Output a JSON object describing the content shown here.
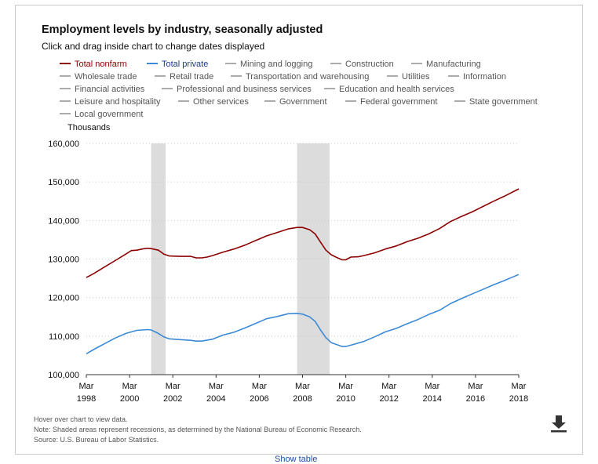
{
  "title": "Employment levels by industry, seasonally adjusted",
  "subtitle": "Click and drag inside chart to change dates displayed",
  "legend": [
    {
      "label": "Total nonfarm",
      "color": "#8b0000",
      "active": true
    },
    {
      "label": "Total private",
      "color": "#3c8ad6",
      "active": true
    },
    {
      "label": "Mining and logging",
      "color": "#aaaaaa",
      "active": false
    },
    {
      "label": "Construction",
      "color": "#aaaaaa",
      "active": false
    },
    {
      "label": "Manufacturing",
      "color": "#aaaaaa",
      "active": false
    },
    {
      "label": "Wholesale trade",
      "color": "#aaaaaa",
      "active": false
    },
    {
      "label": "Retail trade",
      "color": "#aaaaaa",
      "active": false
    },
    {
      "label": "Transportation and warehousing",
      "color": "#aaaaaa",
      "active": false
    },
    {
      "label": "Utilities",
      "color": "#aaaaaa",
      "active": false
    },
    {
      "label": "Information",
      "color": "#aaaaaa",
      "active": false
    },
    {
      "label": "Financial activities",
      "color": "#aaaaaa",
      "active": false
    },
    {
      "label": "Professional and business services",
      "color": "#aaaaaa",
      "active": false
    },
    {
      "label": "Education and health services",
      "color": "#aaaaaa",
      "active": false
    },
    {
      "label": "Leisure and hospitality",
      "color": "#aaaaaa",
      "active": false
    },
    {
      "label": "Other services",
      "color": "#aaaaaa",
      "active": false
    },
    {
      "label": "Government",
      "color": "#aaaaaa",
      "active": false
    },
    {
      "label": "Federal government",
      "color": "#aaaaaa",
      "active": false
    },
    {
      "label": "State government",
      "color": "#aaaaaa",
      "active": false
    },
    {
      "label": "Local government",
      "color": "#aaaaaa",
      "active": false
    }
  ],
  "notes": {
    "hover": "Hover over chart to view data.",
    "note": "Note: Shaded areas represent recessions, as determined by the National Bureau of Economic Research.",
    "source": "Source: U.S. Bureau of Labor Statistics."
  },
  "table_link": "Show table",
  "download_icon": "download-icon",
  "chart_data": {
    "type": "line",
    "title": "",
    "ylabel": "Thousands",
    "xlabel": "",
    "ylim": [
      100000,
      160000
    ],
    "yticks": [
      100000,
      110000,
      120000,
      130000,
      140000,
      150000,
      160000
    ],
    "ytick_labels": [
      "100,000",
      "110,000",
      "120,000",
      "130,000",
      "140,000",
      "150,000",
      "160,000"
    ],
    "xlim": [
      1998.167,
      2018.167
    ],
    "xticks": [
      {
        "x": 1998.167,
        "month": "Mar",
        "year": "1998"
      },
      {
        "x": 2000.167,
        "month": "Mar",
        "year": "2000"
      },
      {
        "x": 2002.167,
        "month": "Mar",
        "year": "2002"
      },
      {
        "x": 2004.167,
        "month": "Mar",
        "year": "2004"
      },
      {
        "x": 2006.167,
        "month": "Mar",
        "year": "2006"
      },
      {
        "x": 2008.167,
        "month": "Mar",
        "year": "2008"
      },
      {
        "x": 2010.167,
        "month": "Mar",
        "year": "2010"
      },
      {
        "x": 2012.167,
        "month": "Mar",
        "year": "2012"
      },
      {
        "x": 2014.167,
        "month": "Mar",
        "year": "2014"
      },
      {
        "x": 2016.167,
        "month": "Mar",
        "year": "2016"
      },
      {
        "x": 2018.167,
        "month": "Mar",
        "year": "2018"
      }
    ],
    "grid": true,
    "recessions": [
      [
        2001.167,
        2001.833
      ],
      [
        2007.917,
        2009.417
      ]
    ],
    "series": [
      {
        "name": "Total nonfarm",
        "color": "#8b0000",
        "points": [
          [
            1998.167,
            125200
          ],
          [
            1998.5,
            126200
          ],
          [
            1999.0,
            127900
          ],
          [
            1999.5,
            129600
          ],
          [
            2000.0,
            131300
          ],
          [
            2000.25,
            132200
          ],
          [
            2000.5,
            132300
          ],
          [
            2000.75,
            132600
          ],
          [
            2001.0,
            132800
          ],
          [
            2001.167,
            132700
          ],
          [
            2001.5,
            132300
          ],
          [
            2001.75,
            131300
          ],
          [
            2002.0,
            130800
          ],
          [
            2002.5,
            130700
          ],
          [
            2003.0,
            130700
          ],
          [
            2003.25,
            130300
          ],
          [
            2003.5,
            130300
          ],
          [
            2003.75,
            130500
          ],
          [
            2004.0,
            130900
          ],
          [
            2004.5,
            131800
          ],
          [
            2005.0,
            132600
          ],
          [
            2005.5,
            133600
          ],
          [
            2006.0,
            134800
          ],
          [
            2006.5,
            136000
          ],
          [
            2007.0,
            136900
          ],
          [
            2007.5,
            137800
          ],
          [
            2007.917,
            138200
          ],
          [
            2008.167,
            138200
          ],
          [
            2008.5,
            137600
          ],
          [
            2008.75,
            136500
          ],
          [
            2009.0,
            134400
          ],
          [
            2009.25,
            132300
          ],
          [
            2009.5,
            131100
          ],
          [
            2009.75,
            130400
          ],
          [
            2010.0,
            129800
          ],
          [
            2010.167,
            129800
          ],
          [
            2010.4,
            130500
          ],
          [
            2010.75,
            130600
          ],
          [
            2011.0,
            130900
          ],
          [
            2011.5,
            131600
          ],
          [
            2012.0,
            132600
          ],
          [
            2012.5,
            133400
          ],
          [
            2013.0,
            134500
          ],
          [
            2013.5,
            135400
          ],
          [
            2014.0,
            136500
          ],
          [
            2014.5,
            137900
          ],
          [
            2015.0,
            139700
          ],
          [
            2015.5,
            141000
          ],
          [
            2016.0,
            142200
          ],
          [
            2016.5,
            143600
          ],
          [
            2017.0,
            145000
          ],
          [
            2017.5,
            146300
          ],
          [
            2018.167,
            148200
          ]
        ]
      },
      {
        "name": "Total private",
        "color": "#3c8ad6",
        "points": [
          [
            1998.167,
            105400
          ],
          [
            1998.5,
            106500
          ],
          [
            1999.0,
            108000
          ],
          [
            1999.5,
            109500
          ],
          [
            2000.0,
            110700
          ],
          [
            2000.5,
            111500
          ],
          [
            2001.0,
            111700
          ],
          [
            2001.167,
            111600
          ],
          [
            2001.5,
            110700
          ],
          [
            2001.75,
            109800
          ],
          [
            2002.0,
            109300
          ],
          [
            2002.5,
            109100
          ],
          [
            2003.0,
            108900
          ],
          [
            2003.25,
            108700
          ],
          [
            2003.5,
            108700
          ],
          [
            2004.0,
            109200
          ],
          [
            2004.5,
            110300
          ],
          [
            2005.0,
            111000
          ],
          [
            2005.5,
            112100
          ],
          [
            2006.0,
            113300
          ],
          [
            2006.5,
            114500
          ],
          [
            2007.0,
            115100
          ],
          [
            2007.5,
            115800
          ],
          [
            2007.917,
            115900
          ],
          [
            2008.167,
            115700
          ],
          [
            2008.5,
            115000
          ],
          [
            2008.75,
            113800
          ],
          [
            2009.0,
            111600
          ],
          [
            2009.25,
            109600
          ],
          [
            2009.5,
            108300
          ],
          [
            2009.75,
            107800
          ],
          [
            2010.0,
            107300
          ],
          [
            2010.167,
            107300
          ],
          [
            2010.5,
            107800
          ],
          [
            2011.0,
            108600
          ],
          [
            2011.5,
            109800
          ],
          [
            2012.0,
            111100
          ],
          [
            2012.5,
            112000
          ],
          [
            2013.0,
            113200
          ],
          [
            2013.5,
            114300
          ],
          [
            2014.0,
            115600
          ],
          [
            2014.5,
            116700
          ],
          [
            2015.0,
            118400
          ],
          [
            2015.5,
            119700
          ],
          [
            2016.0,
            120900
          ],
          [
            2016.5,
            122100
          ],
          [
            2017.0,
            123300
          ],
          [
            2017.5,
            124400
          ],
          [
            2018.167,
            126000
          ]
        ]
      }
    ]
  }
}
